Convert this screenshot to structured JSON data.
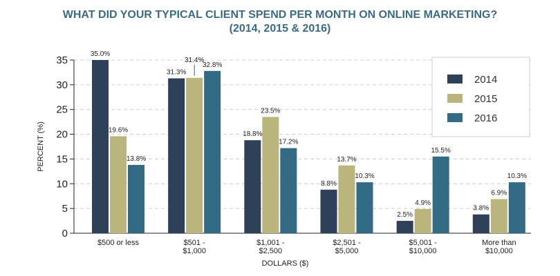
{
  "chart_data": {
    "type": "bar",
    "title": "WHAT DID YOUR TYPICAL CLIENT SPEND PER MONTH ON ONLINE MARKETING?",
    "subtitle": "(2014, 2015 & 2016)",
    "xlabel": "DOLLARS ($)",
    "ylabel": "PERCENT (%)",
    "ylim": [
      0,
      35
    ],
    "yticks": [
      0,
      5,
      10,
      15,
      20,
      25,
      30,
      35
    ],
    "grid": true,
    "legend_position": "top-right",
    "categories": [
      [
        "$500 or less"
      ],
      [
        "$501 -",
        "$1,000"
      ],
      [
        "$1,001 -",
        "$2,500"
      ],
      [
        "$2,501 -",
        "$5,000"
      ],
      [
        "$5,001 -",
        "$10,000"
      ],
      [
        "More than",
        "$10,000"
      ]
    ],
    "series": [
      {
        "name": "2014",
        "color": "#2f4158",
        "values": [
          35.0,
          31.3,
          18.8,
          8.8,
          2.5,
          3.8
        ],
        "labels": [
          "35.0%",
          "31.3%",
          "18.8%",
          "8.8%",
          "2.5%",
          "3.8%"
        ]
      },
      {
        "name": "2015",
        "color": "#b9b57d",
        "values": [
          19.6,
          31.4,
          23.5,
          13.7,
          4.9,
          6.9
        ],
        "labels": [
          "19.6%",
          "31.4%",
          "23.5%",
          "13.7%",
          "4.9%",
          "6.9%"
        ]
      },
      {
        "name": "2016",
        "color": "#336a84",
        "values": [
          13.8,
          32.8,
          17.2,
          10.3,
          15.5,
          10.3
        ],
        "labels": [
          "13.8%",
          "32.8%",
          "17.2%",
          "10.3%",
          "15.5%",
          "10.3%"
        ]
      }
    ]
  }
}
